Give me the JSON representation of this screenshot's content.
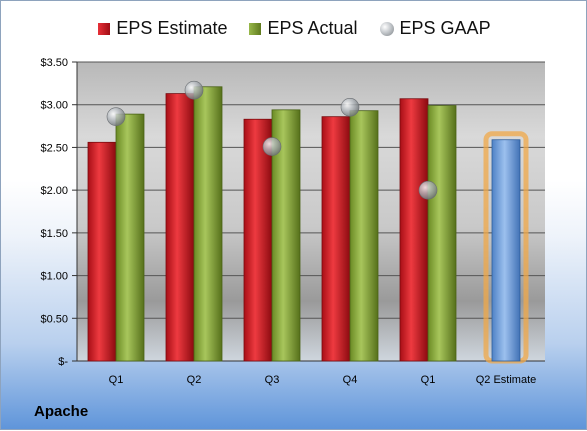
{
  "chart_data": {
    "type": "bar",
    "categories": [
      "Q1",
      "Q2",
      "Q3",
      "Q4",
      "Q1",
      "Q2 Estimate"
    ],
    "series": [
      {
        "name": "EPS Estimate",
        "values": [
          2.56,
          3.13,
          2.83,
          2.86,
          3.07,
          null
        ],
        "color": "#c0141c"
      },
      {
        "name": "EPS Actual",
        "values": [
          2.89,
          3.21,
          2.94,
          2.93,
          2.99,
          null
        ],
        "color": "#7c9a2e"
      },
      {
        "name": "EPS GAAP",
        "type": "scatter",
        "values": [
          2.86,
          3.17,
          2.51,
          2.97,
          2.0,
          null
        ],
        "color": "#a8adb2"
      },
      {
        "name": "",
        "values": [
          null,
          null,
          null,
          null,
          null,
          2.59
        ],
        "color": "#6b9bd6"
      }
    ],
    "yticks": [
      "$-",
      "$0.50",
      "$1.00",
      "$1.50",
      "$2.00",
      "$2.50",
      "$3.00",
      "$3.50"
    ],
    "ylim": [
      0,
      3.5
    ],
    "grid": true,
    "legend_position": "top",
    "xlabel": "",
    "ylabel": ""
  },
  "footer": {
    "company": "Apache"
  }
}
